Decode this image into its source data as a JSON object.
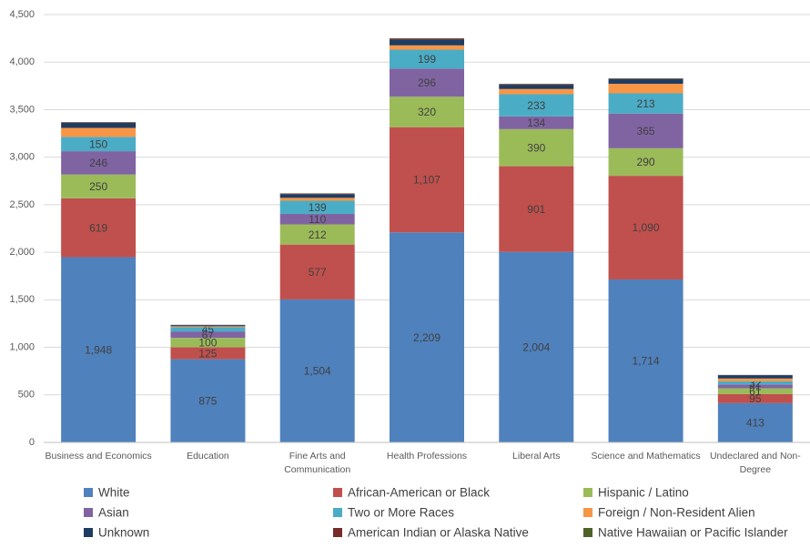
{
  "chart_data": {
    "type": "stacked_bar",
    "categories": [
      "Business and Economics",
      "Education",
      "Fine Arts and Communication",
      "Health Professions",
      "Liberal Arts",
      "Science and Mathematics",
      "Undeclared and Non-Degree"
    ],
    "series": [
      {
        "name": "White",
        "color": "#4f81bd",
        "values": [
          1948,
          875,
          1504,
          2209,
          2004,
          1714,
          413
        ],
        "value_labels": [
          "1,948",
          "875",
          "1,504",
          "2,209",
          "2,004",
          "1,714",
          "413"
        ]
      },
      {
        "name": "African-American or Black",
        "color": "#c0504d",
        "values": [
          619,
          125,
          577,
          1107,
          901,
          1090,
          95
        ],
        "value_labels": [
          "619",
          "125",
          "577",
          "1,107",
          "901",
          "1,090",
          "95"
        ]
      },
      {
        "name": "Hispanic / Latino",
        "color": "#9bbb59",
        "values": [
          250,
          100,
          212,
          320,
          390,
          290,
          61
        ],
        "value_labels": [
          "250",
          "100",
          "212",
          "320",
          "390",
          "290",
          "61"
        ]
      },
      {
        "name": "Asian",
        "color": "#8064a2",
        "values": [
          246,
          67,
          110,
          296,
          134,
          365,
          41
        ],
        "value_labels": [
          "246",
          "67",
          "110",
          "296",
          "134",
          "365",
          "41"
        ]
      },
      {
        "name": "Two or More Races",
        "color": "#4bacc6",
        "values": [
          150,
          45,
          139,
          199,
          233,
          213,
          32
        ],
        "value_labels": [
          "150",
          "45",
          "139",
          "199",
          "233",
          "213",
          "32"
        ]
      },
      {
        "name": "Foreign / Non-Resident Alien",
        "color": "#f79646",
        "values": [
          95,
          10,
          30,
          45,
          55,
          100,
          30
        ]
      },
      {
        "name": "Unknown",
        "color": "#1f3d63",
        "values": [
          55,
          12,
          40,
          60,
          45,
          50,
          35
        ]
      },
      {
        "name": "American Indian or Alaska Native",
        "color": "#772c2a",
        "values": [
          5,
          2,
          5,
          10,
          6,
          6,
          2
        ]
      },
      {
        "name": "Native Hawaiian or Pacific Islander",
        "color": "#4f6228",
        "values": [
          2,
          1,
          3,
          4,
          3,
          2,
          1
        ]
      }
    ],
    "ylim": [
      0,
      4500
    ],
    "yticks": [
      0,
      500,
      {
        "value": 1000,
        "label": "1,000"
      },
      {
        "value": 1500,
        "label": "1,500"
      },
      {
        "value": 2000,
        "label": "2,000"
      },
      {
        "value": 2500,
        "label": "2,500"
      },
      {
        "value": 3000,
        "label": "3,000"
      },
      {
        "value": 3500,
        "label": "3,500"
      },
      {
        "value": 4000,
        "label": "4,000"
      },
      {
        "value": 4500,
        "label": "4,500"
      }
    ],
    "grid": true
  }
}
